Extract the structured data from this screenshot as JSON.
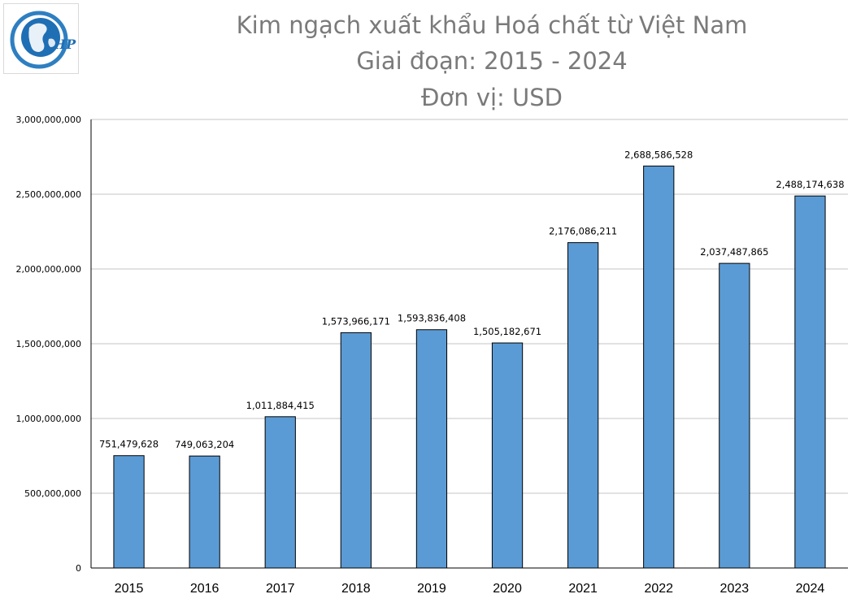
{
  "logo": {
    "text": "HP",
    "icon": "globe-logo-icon"
  },
  "chart_data": {
    "type": "bar",
    "title": [
      "Kim ngạch xuất khẩu Hoá chất từ Việt Nam",
      "Giai đoạn: 2015 - 2024",
      "Đơn vị: USD"
    ],
    "xlabel": "",
    "ylabel": "",
    "categories": [
      "2015",
      "2016",
      "2017",
      "2018",
      "2019",
      "2020",
      "2021",
      "2022",
      "2023",
      "2024"
    ],
    "values": [
      751479628,
      749063204,
      1011884415,
      1573966171,
      1593836408,
      1505182671,
      2176086211,
      2688586528,
      2037487865,
      2488174638
    ],
    "value_labels": [
      "751,479,628",
      "749,063,204",
      "1,011,884,415",
      "1,573,966,171",
      "1,593,836,408",
      "1,505,182,671",
      "2,176,086,211",
      "2,688,586,528",
      "2,037,487,865",
      "2,488,174,638"
    ],
    "ylim": [
      0,
      3000000000
    ],
    "yticks": [
      0,
      500000000,
      1000000000,
      1500000000,
      2000000000,
      2500000000,
      3000000000
    ],
    "ytick_labels": [
      "0",
      "500,000,000",
      "1,000,000,000",
      "1,500,000,000",
      "2,000,000,000",
      "2,500,000,000",
      "3,000,000,000"
    ],
    "grid": true,
    "bar_color": "#5b9bd5",
    "legend": "none"
  }
}
